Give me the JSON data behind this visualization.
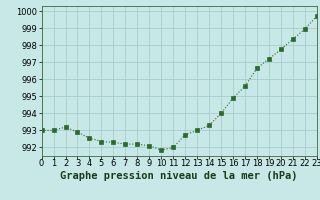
{
  "x": [
    0,
    1,
    2,
    3,
    4,
    5,
    6,
    7,
    8,
    9,
    10,
    11,
    12,
    13,
    14,
    15,
    16,
    17,
    18,
    19,
    20,
    21,
    22,
    23
  ],
  "y": [
    993.0,
    993.0,
    993.2,
    992.9,
    992.55,
    992.35,
    992.3,
    992.2,
    992.2,
    992.1,
    991.85,
    992.0,
    992.75,
    993.0,
    993.3,
    994.0,
    994.9,
    995.6,
    996.65,
    997.2,
    997.75,
    998.35,
    998.95,
    999.7
  ],
  "ylim": [
    991.5,
    1000.3
  ],
  "xlim": [
    0,
    23
  ],
  "yticks": [
    992,
    993,
    994,
    995,
    996,
    997,
    998,
    999,
    1000
  ],
  "xtick_labels": [
    "0",
    "1",
    "2",
    "3",
    "4",
    "5",
    "6",
    "7",
    "8",
    "9",
    "10",
    "11",
    "12",
    "13",
    "14",
    "15",
    "16",
    "17",
    "18",
    "19",
    "20",
    "21",
    "22",
    "23"
  ],
  "xlabel": "Graphe pression niveau de la mer (hPa)",
  "line_color": "#2d6a2d",
  "marker_color": "#2d6a2d",
  "bg_color": "#c8e8e8",
  "grid_color": "#a8cccc",
  "tick_fontsize": 6,
  "xlabel_fontsize": 7.5
}
